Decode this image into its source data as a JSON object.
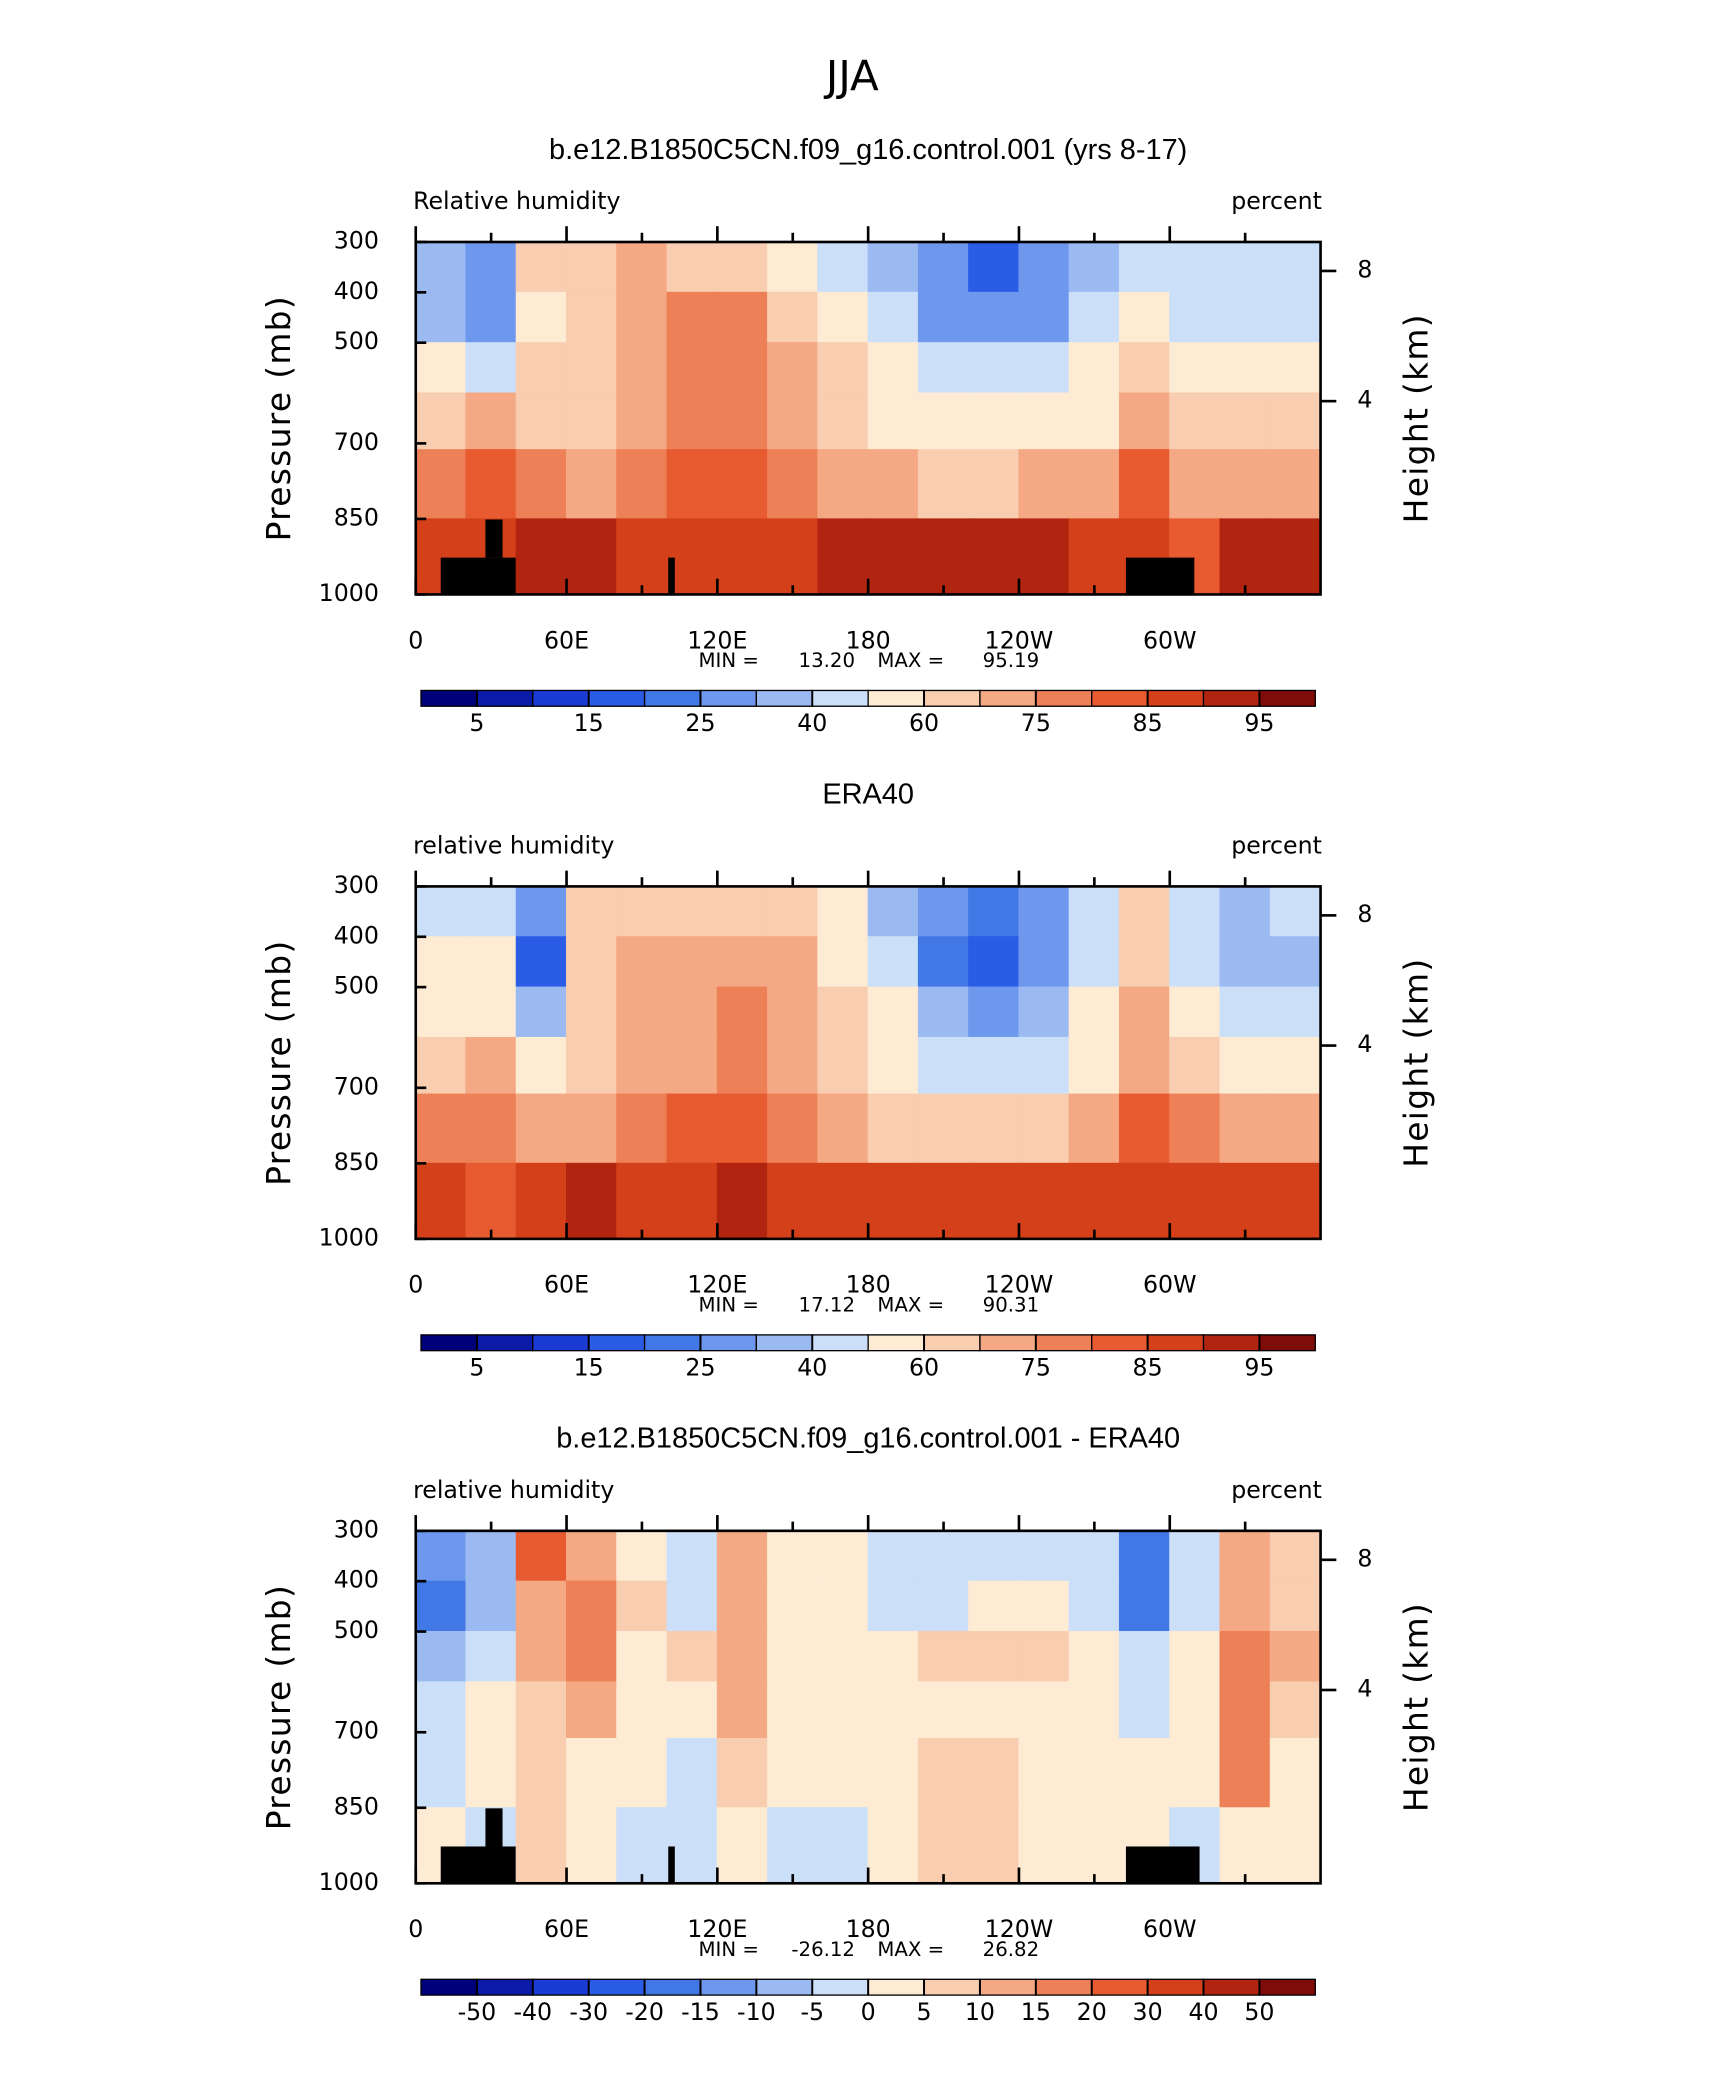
{
  "suptitle": "JJA",
  "chart_data": [
    {
      "type": "contour",
      "title": "b.e12.B1850C5CN.f09_g16.control.001 (yrs 8-17)",
      "left_label": "Relative humidity",
      "right_label": "percent",
      "ylabel": "Pressure (mb)",
      "y2label": "Height (km)",
      "x": [
        10,
        30,
        50,
        70,
        90,
        110,
        130,
        150,
        170,
        190,
        210,
        230,
        250,
        270,
        290,
        310,
        330,
        350
      ],
      "y": [
        350,
        450,
        550,
        650,
        775,
        925
      ],
      "z": [
        [
          35,
          30,
          60,
          65,
          70,
          65,
          60,
          55,
          45,
          35,
          25,
          18,
          25,
          35,
          45,
          40,
          45,
          45
        ],
        [
          35,
          30,
          55,
          65,
          72,
          77,
          75,
          65,
          55,
          40,
          30,
          25,
          30,
          40,
          55,
          45,
          45,
          45
        ],
        [
          50,
          45,
          60,
          65,
          72,
          78,
          78,
          70,
          60,
          52,
          45,
          42,
          45,
          52,
          60,
          55,
          55,
          55
        ],
        [
          62,
          70,
          65,
          65,
          70,
          75,
          75,
          70,
          62,
          58,
          55,
          55,
          55,
          58,
          70,
          62,
          60,
          60
        ],
        [
          75,
          82,
          75,
          72,
          75,
          80,
          80,
          75,
          72,
          68,
          67,
          67,
          68,
          72,
          82,
          72,
          70,
          70
        ],
        [
          88,
          88,
          90,
          90,
          88,
          88,
          88,
          88,
          90,
          90,
          90,
          90,
          92,
          88,
          88,
          82,
          90,
          90
        ]
      ],
      "xlim": [
        0,
        360
      ],
      "xticks": [
        0,
        {
          "value": 60,
          "label": "60E"
        },
        {
          "value": 120,
          "label": "120E"
        },
        180,
        {
          "value": 240,
          "label": "120W"
        },
        {
          "value": 300,
          "label": "60W"
        }
      ],
      "xminorticks": [
        30,
        90,
        150,
        210,
        270,
        330
      ],
      "ylim": [
        1000,
        300
      ],
      "yticks": [
        300,
        400,
        500,
        700,
        850,
        1000
      ],
      "y2lim": [
        -1.94,
        8.89
      ],
      "y2ticks": [
        4,
        8
      ],
      "min_label": "MIN =",
      "min": {
        "value": 13.2,
        "label": "13.20"
      },
      "max_label": "MAX =",
      "max": {
        "value": 95.19,
        "label": "95.19"
      },
      "colorbar": {
        "colors": [
          "#00007a",
          "#0c1aa8",
          "#1a3cd4",
          "#2a5ce6",
          "#4178e6",
          "#6e98ee",
          "#9cbaf2",
          "#cbdff8",
          "#fdebd4",
          "#f9cdb0",
          "#f4a884",
          "#ee8058",
          "#e85a30",
          "#d4401a",
          "#b02410",
          "#7e0c08"
        ],
        "ticks": [
          5,
          15,
          25,
          40,
          60,
          75,
          85,
          95
        ]
      },
      "topography": true
    },
    {
      "type": "contour",
      "title": "ERA40",
      "left_label": "relative humidity",
      "right_label": "percent",
      "ylabel": "Pressure (mb)",
      "y2label": "Height (km)",
      "x": [
        10,
        30,
        50,
        70,
        90,
        110,
        130,
        150,
        170,
        190,
        210,
        230,
        250,
        270,
        290,
        310,
        330,
        350
      ],
      "y": [
        350,
        450,
        550,
        650,
        775,
        925
      ],
      "z": [
        [
          45,
          40,
          25,
          62,
          65,
          65,
          65,
          62,
          50,
          35,
          25,
          22,
          32,
          45,
          60,
          45,
          38,
          42
        ],
        [
          50,
          50,
          18,
          60,
          68,
          68,
          68,
          68,
          55,
          40,
          20,
          18,
          28,
          42,
          62,
          45,
          35,
          38
        ],
        [
          55,
          55,
          35,
          60,
          68,
          68,
          75,
          70,
          62,
          50,
          35,
          30,
          35,
          50,
          68,
          52,
          40,
          42
        ],
        [
          62,
          70,
          50,
          62,
          68,
          70,
          75,
          72,
          65,
          58,
          48,
          45,
          48,
          58,
          72,
          60,
          50,
          50
        ],
        [
          75,
          78,
          72,
          72,
          75,
          80,
          80,
          78,
          72,
          65,
          62,
          60,
          62,
          70,
          80,
          75,
          70,
          70
        ],
        [
          85,
          80,
          88,
          90,
          88,
          88,
          90,
          88,
          88,
          85,
          85,
          85,
          85,
          85,
          88,
          85,
          88,
          88
        ]
      ],
      "xlim": [
        0,
        360
      ],
      "xticks": [
        0,
        {
          "value": 60,
          "label": "60E"
        },
        {
          "value": 120,
          "label": "120E"
        },
        180,
        {
          "value": 240,
          "label": "120W"
        },
        {
          "value": 300,
          "label": "60W"
        }
      ],
      "xminorticks": [
        30,
        90,
        150,
        210,
        270,
        330
      ],
      "ylim": [
        1000,
        300
      ],
      "yticks": [
        300,
        400,
        500,
        700,
        850,
        1000
      ],
      "y2lim": [
        -1.94,
        8.89
      ],
      "y2ticks": [
        4,
        8
      ],
      "min_label": "MIN =",
      "min": {
        "value": 17.12,
        "label": "17.12"
      },
      "max_label": "MAX =",
      "max": {
        "value": 90.31,
        "label": "90.31"
      },
      "colorbar": {
        "colors": [
          "#00007a",
          "#0c1aa8",
          "#1a3cd4",
          "#2a5ce6",
          "#4178e6",
          "#6e98ee",
          "#9cbaf2",
          "#cbdff8",
          "#fdebd4",
          "#f9cdb0",
          "#f4a884",
          "#ee8058",
          "#e85a30",
          "#d4401a",
          "#b02410",
          "#7e0c08"
        ],
        "ticks": [
          5,
          15,
          25,
          40,
          60,
          75,
          85,
          95
        ]
      },
      "topography": false
    },
    {
      "type": "contour",
      "title": "b.e12.B1850C5CN.f09_g16.control.001 - ERA40",
      "left_label": "relative humidity",
      "right_label": "percent",
      "ylabel": "Pressure (mb)",
      "y2label": "Height (km)",
      "x": [
        10,
        30,
        50,
        70,
        90,
        110,
        130,
        150,
        170,
        190,
        210,
        230,
        250,
        270,
        290,
        310,
        330,
        350
      ],
      "y": [
        350,
        450,
        550,
        650,
        775,
        925
      ],
      "z": [
        [
          -15,
          -10,
          20,
          12,
          3,
          -3,
          10,
          3,
          0,
          -3,
          -3,
          -3,
          -3,
          -5,
          -20,
          -5,
          12,
          8
        ],
        [
          -20,
          -8,
          12,
          15,
          6,
          -5,
          12,
          3,
          0,
          -3,
          -5,
          0,
          0,
          -5,
          -18,
          -3,
          10,
          8
        ],
        [
          -8,
          -5,
          10,
          15,
          3,
          5,
          12,
          4,
          0,
          2,
          5,
          8,
          6,
          0,
          -5,
          2,
          18,
          10
        ],
        [
          -5,
          2,
          8,
          10,
          3,
          4,
          12,
          3,
          2,
          3,
          3,
          3,
          3,
          1,
          -3,
          4,
          18,
          8
        ],
        [
          -2,
          0,
          6,
          3,
          0,
          -2,
          6,
          1,
          2,
          3,
          5,
          6,
          4,
          0,
          1,
          0,
          15,
          2
        ],
        [
          3,
          -5,
          5,
          4,
          -3,
          -3,
          0,
          -3,
          -2,
          2,
          6,
          8,
          3,
          1,
          0,
          -2,
          3,
          3
        ]
      ],
      "xlim": [
        0,
        360
      ],
      "xticks": [
        0,
        {
          "value": 60,
          "label": "60E"
        },
        {
          "value": 120,
          "label": "120E"
        },
        180,
        {
          "value": 240,
          "label": "120W"
        },
        {
          "value": 300,
          "label": "60W"
        }
      ],
      "xminorticks": [
        30,
        90,
        150,
        210,
        270,
        330
      ],
      "ylim": [
        1000,
        300
      ],
      "yticks": [
        300,
        400,
        500,
        700,
        850,
        1000
      ],
      "y2lim": [
        -1.94,
        8.89
      ],
      "y2ticks": [
        4,
        8
      ],
      "min_label": "MIN =",
      "min": {
        "value": -26.12,
        "label": "-26.12"
      },
      "max_label": "MAX =",
      "max": {
        "value": 26.82,
        "label": "26.82"
      },
      "colorbar": {
        "colors": [
          "#00007a",
          "#0c1aa8",
          "#1a3cd4",
          "#2a5ce6",
          "#4178e6",
          "#6e98ee",
          "#9cbaf2",
          "#cbdff8",
          "#fdebd4",
          "#f9cdb0",
          "#f4a884",
          "#ee8058",
          "#e85a30",
          "#d4401a",
          "#b02410",
          "#7e0c08"
        ],
        "ticks": [
          -50,
          -40,
          -30,
          -20,
          -15,
          -10,
          -5,
          0,
          5,
          10,
          15,
          20,
          30,
          40,
          50
        ]
      },
      "topography": true
    }
  ]
}
